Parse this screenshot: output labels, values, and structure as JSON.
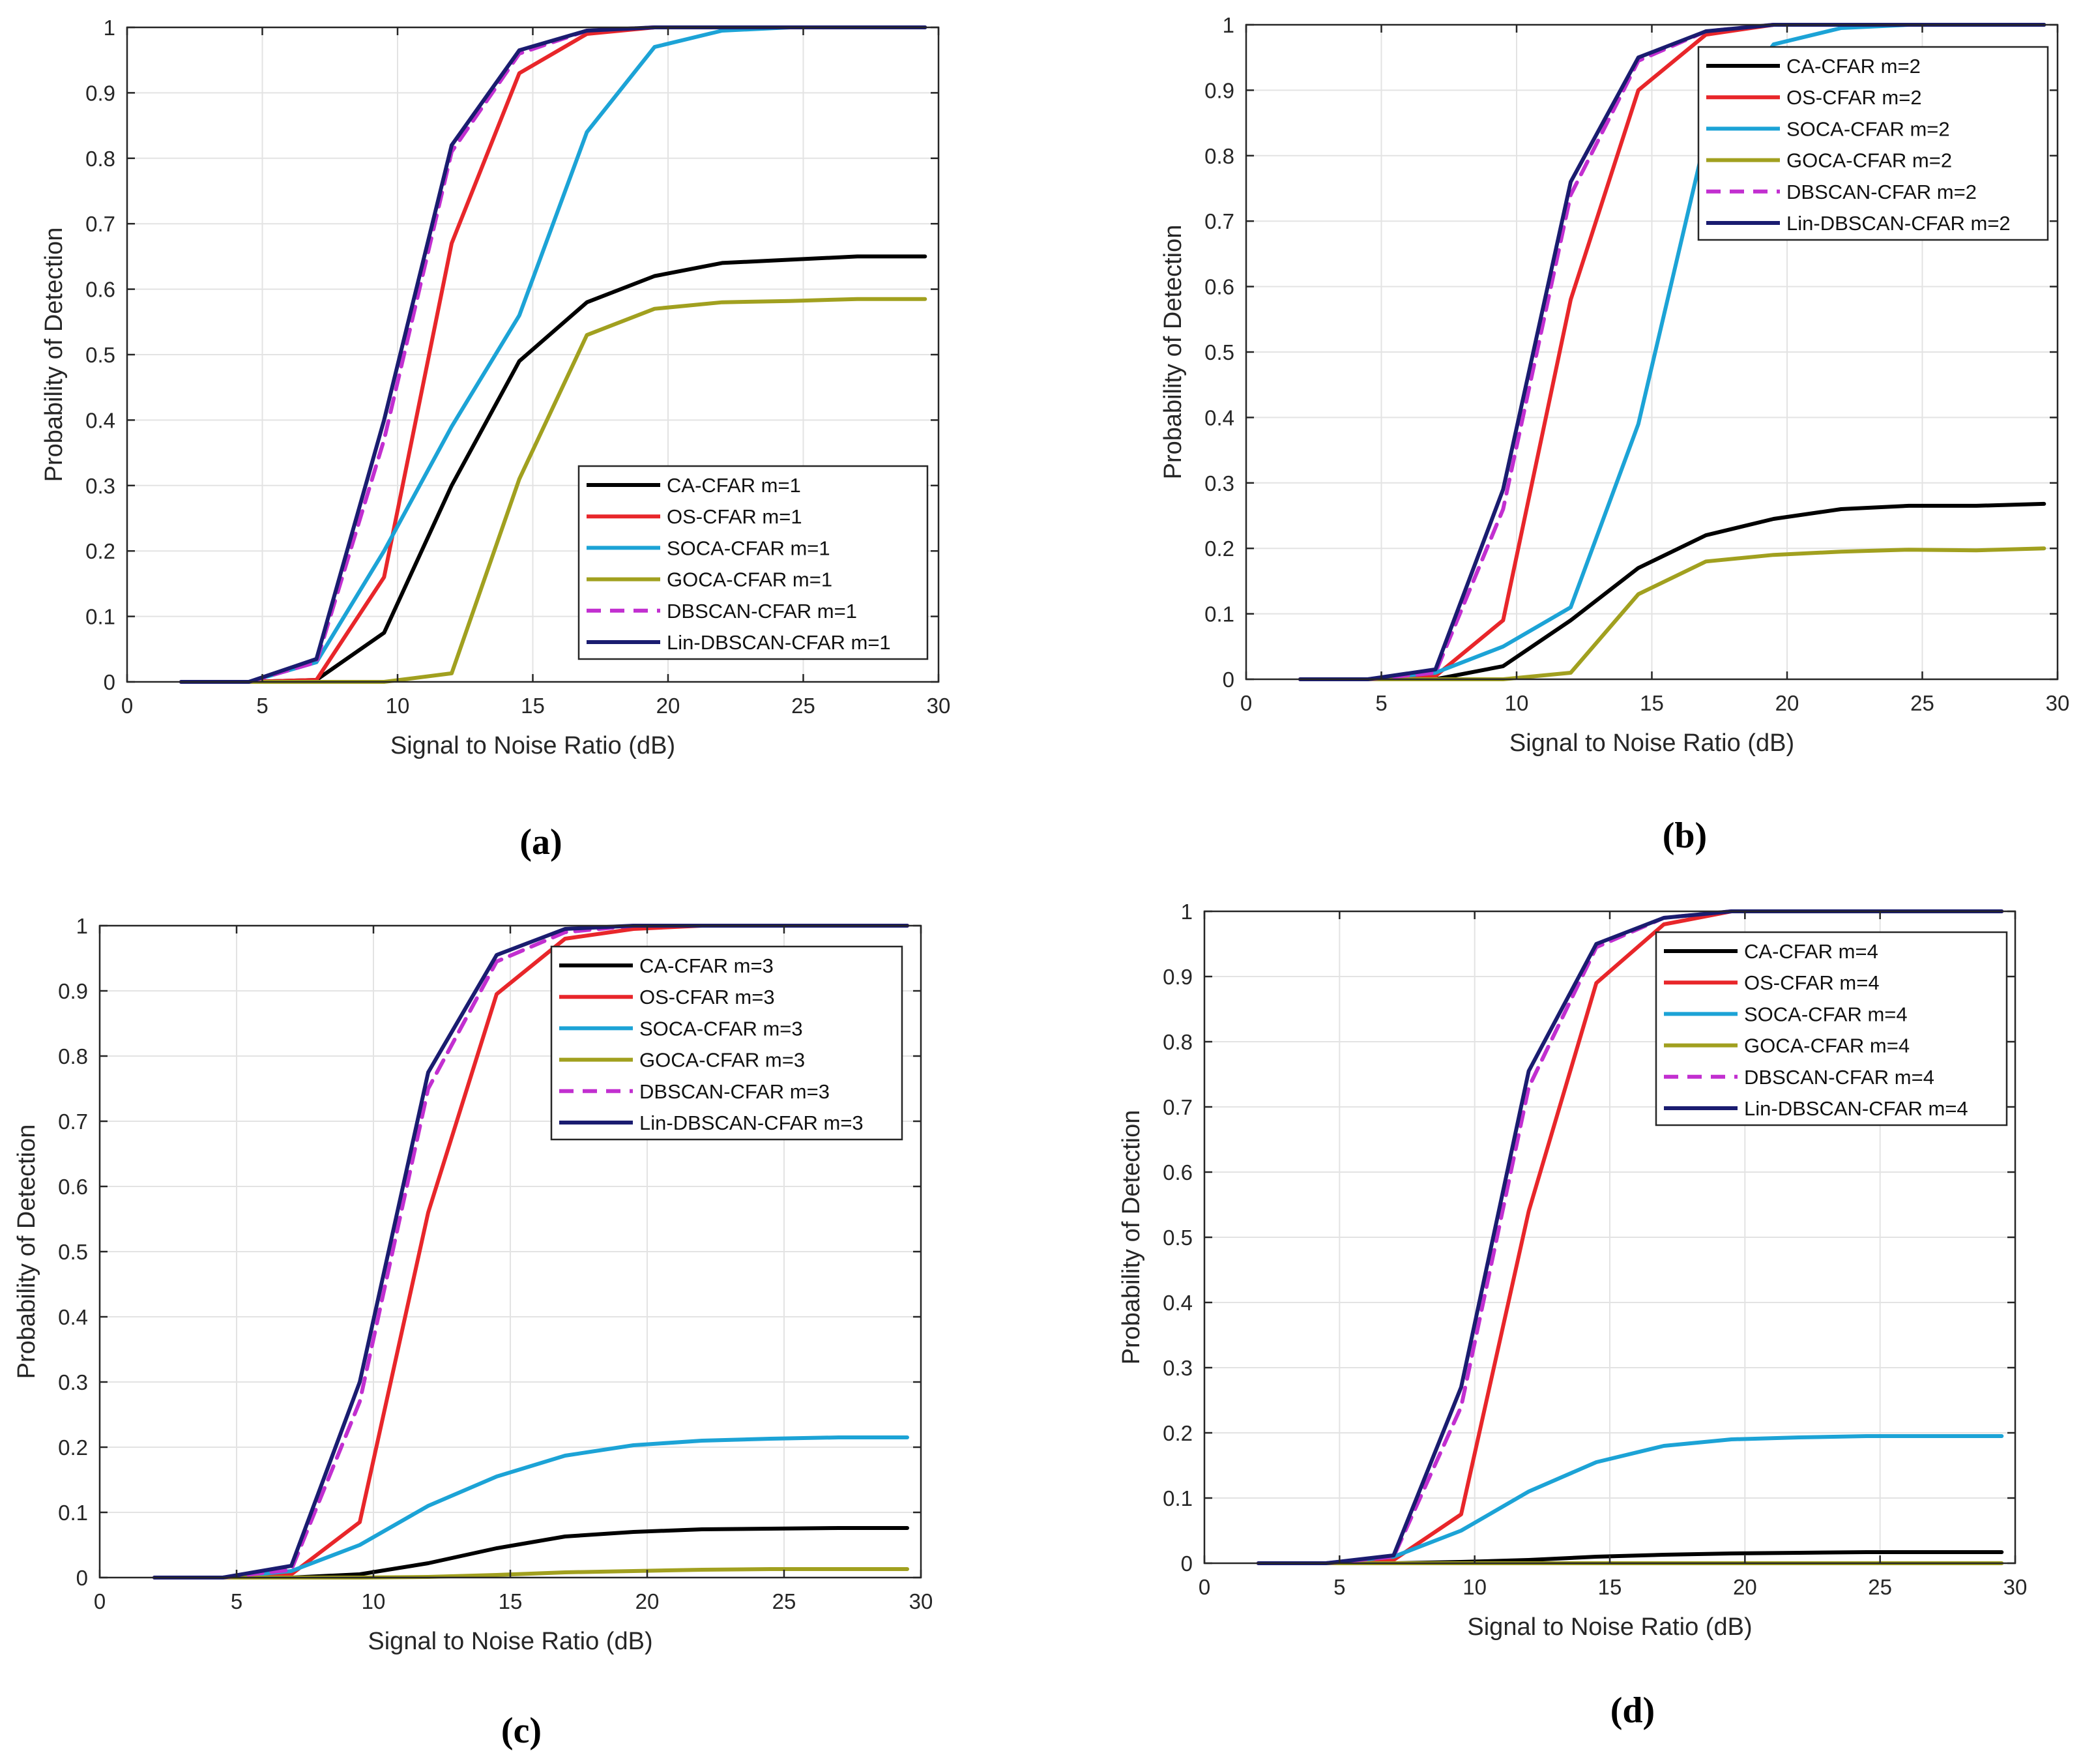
{
  "figure": {
    "panel_labels": [
      "(a)",
      "(b)",
      "(c)",
      "(d)"
    ]
  },
  "colors": {
    "CA-CFAR": "#000000",
    "OS-CFAR": "#e8262a",
    "SOCA-CFAR": "#1ca3d6",
    "GOCA-CFAR": "#a1a01f",
    "DBSCAN-CFAR": "#c22fd0",
    "Lin-DBSCAN-CFAR": "#1a1c70"
  },
  "chart_data": [
    {
      "type": "line",
      "panel": "(a)",
      "xlabel": "Signal to Noise Ratio (dB)",
      "ylabel": "Probability of Detection",
      "xlim": [
        0,
        30
      ],
      "ylim": [
        0,
        1
      ],
      "xticks": [
        0,
        5,
        10,
        15,
        20,
        25,
        30
      ],
      "yticks": [
        0,
        0.1,
        0.2,
        0.3,
        0.4,
        0.5,
        0.6,
        0.7,
        0.8,
        0.9,
        1
      ],
      "grid": true,
      "legend_position": "bottom-right",
      "x": [
        2,
        4.5,
        7,
        9.5,
        12,
        14.5,
        17,
        19.5,
        22,
        24.5,
        27,
        29.5
      ],
      "series": [
        {
          "name": "CA-CFAR m=1",
          "key": "CA-CFAR",
          "dash": false,
          "values": [
            0,
            0,
            0.003,
            0.075,
            0.3,
            0.49,
            0.58,
            0.62,
            0.64,
            0.645,
            0.65,
            0.65
          ]
        },
        {
          "name": "OS-CFAR m=1",
          "key": "OS-CFAR",
          "dash": false,
          "values": [
            0,
            0,
            0.003,
            0.16,
            0.67,
            0.93,
            0.99,
            1,
            1,
            1,
            1,
            1
          ]
        },
        {
          "name": "SOCA-CFAR m=1",
          "key": "SOCA-CFAR",
          "dash": false,
          "values": [
            0,
            0,
            0.03,
            0.2,
            0.39,
            0.56,
            0.84,
            0.97,
            0.995,
            1,
            1,
            1
          ]
        },
        {
          "name": "GOCA-CFAR m=1",
          "key": "GOCA-CFAR",
          "dash": false,
          "values": [
            0,
            0,
            0,
            0,
            0.013,
            0.31,
            0.53,
            0.57,
            0.58,
            0.582,
            0.585,
            0.585
          ]
        },
        {
          "name": "DBSCAN-CFAR m=1",
          "key": "DBSCAN-CFAR",
          "dash": true,
          "values": [
            0,
            0,
            0.03,
            0.37,
            0.81,
            0.96,
            0.995,
            1,
            1,
            1,
            1,
            1
          ]
        },
        {
          "name": "Lin-DBSCAN-CFAR m=1",
          "key": "Lin-DBSCAN-CFAR",
          "dash": false,
          "values": [
            0,
            0,
            0.035,
            0.4,
            0.82,
            0.965,
            0.995,
            1,
            1,
            1,
            1,
            1
          ]
        }
      ]
    },
    {
      "type": "line",
      "panel": "(b)",
      "xlabel": "Signal to Noise Ratio (dB)",
      "ylabel": "Probability of Detection",
      "xlim": [
        0,
        30
      ],
      "ylim": [
        0,
        1
      ],
      "xticks": [
        0,
        5,
        10,
        15,
        20,
        25,
        30
      ],
      "yticks": [
        0,
        0.1,
        0.2,
        0.3,
        0.4,
        0.5,
        0.6,
        0.7,
        0.8,
        0.9,
        1
      ],
      "grid": true,
      "legend_position": "top-right",
      "x": [
        2,
        4.5,
        7,
        9.5,
        12,
        14.5,
        17,
        19.5,
        22,
        24.5,
        27,
        29.5
      ],
      "series": [
        {
          "name": "CA-CFAR m=2",
          "key": "CA-CFAR",
          "dash": false,
          "values": [
            0,
            0,
            0,
            0.02,
            0.09,
            0.17,
            0.22,
            0.245,
            0.26,
            0.265,
            0.265,
            0.268
          ]
        },
        {
          "name": "OS-CFAR m=2",
          "key": "OS-CFAR",
          "dash": false,
          "values": [
            0,
            0,
            0.005,
            0.09,
            0.58,
            0.9,
            0.985,
            1,
            1,
            1,
            1,
            1
          ]
        },
        {
          "name": "SOCA-CFAR m=2",
          "key": "SOCA-CFAR",
          "dash": false,
          "values": [
            0,
            0,
            0.01,
            0.05,
            0.11,
            0.39,
            0.83,
            0.97,
            0.995,
            1,
            1,
            1
          ]
        },
        {
          "name": "GOCA-CFAR m=2",
          "key": "GOCA-CFAR",
          "dash": false,
          "values": [
            0,
            0,
            0,
            0,
            0.01,
            0.13,
            0.18,
            0.19,
            0.195,
            0.198,
            0.197,
            0.2
          ]
        },
        {
          "name": "DBSCAN-CFAR m=2",
          "key": "DBSCAN-CFAR",
          "dash": true,
          "values": [
            0,
            0,
            0.01,
            0.26,
            0.74,
            0.945,
            0.99,
            1,
            1,
            1,
            1,
            1
          ]
        },
        {
          "name": "Lin-DBSCAN-CFAR m=2",
          "key": "Lin-DBSCAN-CFAR",
          "dash": false,
          "values": [
            0,
            0,
            0.015,
            0.29,
            0.76,
            0.95,
            0.99,
            1,
            1,
            1,
            1,
            1
          ]
        }
      ]
    },
    {
      "type": "line",
      "panel": "(c)",
      "xlabel": "Signal to Noise Ratio (dB)",
      "ylabel": "Probability of Detection",
      "xlim": [
        0,
        30
      ],
      "ylim": [
        0,
        1
      ],
      "xticks": [
        0,
        5,
        10,
        15,
        20,
        25,
        30
      ],
      "yticks": [
        0,
        0.1,
        0.2,
        0.3,
        0.4,
        0.5,
        0.6,
        0.7,
        0.8,
        0.9,
        1
      ],
      "grid": true,
      "legend_position": "top-right",
      "x": [
        2,
        4.5,
        7,
        9.5,
        12,
        14.5,
        17,
        19.5,
        22,
        24.5,
        27,
        29.5
      ],
      "series": [
        {
          "name": "CA-CFAR m=3",
          "key": "CA-CFAR",
          "dash": false,
          "values": [
            0,
            0,
            0,
            0.005,
            0.022,
            0.045,
            0.063,
            0.07,
            0.074,
            0.075,
            0.076,
            0.076
          ]
        },
        {
          "name": "OS-CFAR m=3",
          "key": "OS-CFAR",
          "dash": false,
          "values": [
            0,
            0,
            0.005,
            0.085,
            0.56,
            0.895,
            0.98,
            0.995,
            1,
            1,
            1,
            1
          ]
        },
        {
          "name": "SOCA-CFAR m=3",
          "key": "SOCA-CFAR",
          "dash": false,
          "values": [
            0,
            0,
            0.01,
            0.05,
            0.11,
            0.155,
            0.187,
            0.203,
            0.21,
            0.213,
            0.215,
            0.215
          ]
        },
        {
          "name": "GOCA-CFAR m=3",
          "key": "GOCA-CFAR",
          "dash": false,
          "values": [
            0,
            0,
            0,
            0,
            0.001,
            0.004,
            0.008,
            0.01,
            0.012,
            0.013,
            0.013,
            0.013
          ]
        },
        {
          "name": "DBSCAN-CFAR m=3",
          "key": "DBSCAN-CFAR",
          "dash": true,
          "values": [
            0,
            0,
            0.012,
            0.27,
            0.75,
            0.945,
            0.99,
            1,
            1,
            1,
            1,
            1
          ]
        },
        {
          "name": "Lin-DBSCAN-CFAR m=3",
          "key": "Lin-DBSCAN-CFAR",
          "dash": false,
          "values": [
            0,
            0,
            0.018,
            0.3,
            0.775,
            0.955,
            0.995,
            1,
            1,
            1,
            1,
            1
          ]
        }
      ]
    },
    {
      "type": "line",
      "panel": "(d)",
      "xlabel": "Signal to Noise Ratio (dB)",
      "ylabel": "Probability of Detection",
      "xlim": [
        0,
        30
      ],
      "ylim": [
        0,
        1
      ],
      "xticks": [
        0,
        5,
        10,
        15,
        20,
        25,
        30
      ],
      "yticks": [
        0,
        0.1,
        0.2,
        0.3,
        0.4,
        0.5,
        0.6,
        0.7,
        0.8,
        0.9,
        1
      ],
      "grid": true,
      "legend_position": "top-right",
      "x": [
        2,
        4.5,
        7,
        9.5,
        12,
        14.5,
        17,
        19.5,
        22,
        24.5,
        27,
        29.5
      ],
      "series": [
        {
          "name": "CA-CFAR m=4",
          "key": "CA-CFAR",
          "dash": false,
          "values": [
            0,
            0,
            0,
            0.002,
            0.005,
            0.01,
            0.013,
            0.015,
            0.016,
            0.017,
            0.017,
            0.017
          ]
        },
        {
          "name": "OS-CFAR m=4",
          "key": "OS-CFAR",
          "dash": false,
          "values": [
            0,
            0,
            0.005,
            0.075,
            0.54,
            0.89,
            0.98,
            1,
            1,
            1,
            1,
            1
          ]
        },
        {
          "name": "SOCA-CFAR m=4",
          "key": "SOCA-CFAR",
          "dash": false,
          "values": [
            0,
            0,
            0.01,
            0.05,
            0.11,
            0.155,
            0.18,
            0.19,
            0.193,
            0.195,
            0.195,
            0.195
          ]
        },
        {
          "name": "GOCA-CFAR m=4",
          "key": "GOCA-CFAR",
          "dash": false,
          "values": [
            0,
            0,
            0,
            0,
            0,
            0,
            0,
            0,
            0,
            0,
            0,
            0
          ]
        },
        {
          "name": "DBSCAN-CFAR m=4",
          "key": "DBSCAN-CFAR",
          "dash": true,
          "values": [
            0,
            0,
            0.01,
            0.24,
            0.73,
            0.945,
            0.99,
            1,
            1,
            1,
            1,
            1
          ]
        },
        {
          "name": "Lin-DBSCAN-CFAR m=4",
          "key": "Lin-DBSCAN-CFAR",
          "dash": false,
          "values": [
            0,
            0,
            0.012,
            0.27,
            0.755,
            0.95,
            0.99,
            1,
            1,
            1,
            1,
            1
          ]
        }
      ]
    }
  ]
}
